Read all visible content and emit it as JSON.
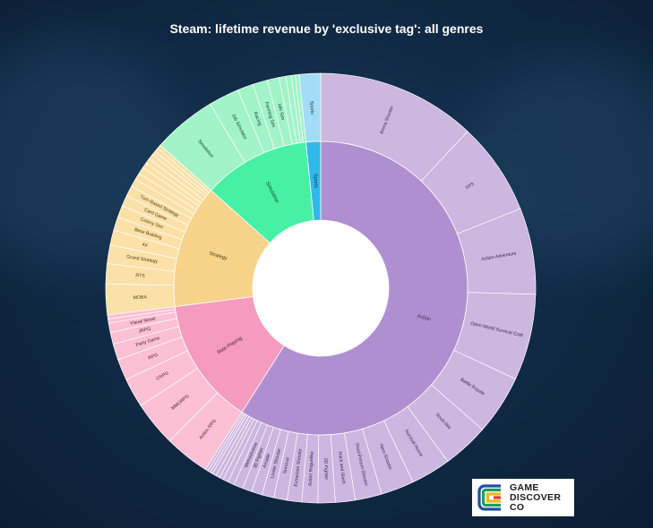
{
  "title": "Steam: lifetime revenue by 'exclusive tag': all genres",
  "logo": {
    "line1": "GAME",
    "line2": "DISCOVER",
    "line3": "CO",
    "colors": [
      "#1e4fa0",
      "#1aa05a",
      "#f2b620",
      "#e03a2f"
    ]
  },
  "chart_data": {
    "type": "sunburst",
    "title": "Steam: lifetime revenue by 'exclusive tag': all genres",
    "unit": "share of total (approx.)",
    "genres": [
      {
        "name": "Action",
        "value": 59.0,
        "inner_color": "#b08fd0",
        "outer_color": "#cdb6df",
        "label_color": "#3a2a4a",
        "tags": [
          {
            "name": "Arena Shooter",
            "value": 12.0
          },
          {
            "name": "FPS",
            "value": 7.0
          },
          {
            "name": "Action-Adventure",
            "value": 6.5
          },
          {
            "name": "Open World Survival Craft",
            "value": 6.5
          },
          {
            "name": "Battle Royale",
            "value": 4.5
          },
          {
            "name": "Souls-like",
            "value": 3.5
          },
          {
            "name": "Survival Horror",
            "value": 3.0
          },
          {
            "name": "Hero Shooter",
            "value": 2.5
          },
          {
            "name": "Third-Person Shooter",
            "value": 2.0
          },
          {
            "name": "Hack and Slash",
            "value": 1.5
          },
          {
            "name": "2D Fighter",
            "value": 1.3
          },
          {
            "name": "Action Roguelike",
            "value": 1.2
          },
          {
            "name": "Extraction Shooter",
            "value": 1.1
          },
          {
            "name": "Survival",
            "value": 1.0
          },
          {
            "name": "Looter Shooter",
            "value": 0.9
          },
          {
            "name": "Arcade",
            "value": 0.8
          },
          {
            "name": "3D Fighter",
            "value": 0.7
          },
          {
            "name": "Metroidvania",
            "value": 0.7
          },
          {
            "name": "",
            "value": 0.5
          },
          {
            "name": "",
            "value": 0.4
          },
          {
            "name": "",
            "value": 0.3
          },
          {
            "name": "",
            "value": 0.3
          },
          {
            "name": "",
            "value": 0.3
          },
          {
            "name": "",
            "value": 0.2
          },
          {
            "name": "",
            "value": 0.2
          },
          {
            "name": "",
            "value": 0.2
          }
        ]
      },
      {
        "name": "Role-Playing",
        "value": 14.0,
        "inner_color": "#f59bbf",
        "outer_color": "#fbc0d4",
        "label_color": "#4a2233",
        "tags": [
          {
            "name": "Action RPG",
            "value": 3.4
          },
          {
            "name": "MMORPG",
            "value": 3.4
          },
          {
            "name": "CRPG",
            "value": 2.2
          },
          {
            "name": "RPG",
            "value": 1.6
          },
          {
            "name": "Party Game",
            "value": 1.2
          },
          {
            "name": "JRPG",
            "value": 0.9
          },
          {
            "name": "Visual Novel",
            "value": 0.7
          },
          {
            "name": "",
            "value": 0.3
          },
          {
            "name": "",
            "value": 0.3
          }
        ]
      },
      {
        "name": "Strategy",
        "value": 13.6,
        "inner_color": "#f7d48a",
        "outer_color": "#fbe1a8",
        "label_color": "#4a3a12",
        "tags": [
          {
            "name": "MOBA",
            "value": 2.3
          },
          {
            "name": "RTS",
            "value": 1.5
          },
          {
            "name": "Grand Strategy",
            "value": 1.4
          },
          {
            "name": "4X",
            "value": 1.1
          },
          {
            "name": "Base Building",
            "value": 1.0
          },
          {
            "name": "Colony Sim",
            "value": 0.9
          },
          {
            "name": "Card Game",
            "value": 0.8
          },
          {
            "name": "Turn-Based Strategy",
            "value": 0.8
          },
          {
            "name": "",
            "value": 0.6
          },
          {
            "name": "",
            "value": 0.5
          },
          {
            "name": "",
            "value": 0.5
          },
          {
            "name": "",
            "value": 0.4
          },
          {
            "name": "",
            "value": 0.4
          },
          {
            "name": "",
            "value": 0.4
          },
          {
            "name": "",
            "value": 0.3
          },
          {
            "name": "",
            "value": 0.3
          },
          {
            "name": "",
            "value": 0.3
          }
        ]
      },
      {
        "name": "Simulation",
        "value": 11.8,
        "inner_color": "#48f0a5",
        "outer_color": "#a2f3c8",
        "label_color": "#14402a",
        "tags": [
          {
            "name": "Simulation",
            "value": 4.8
          },
          {
            "name": "Job Simulator",
            "value": 2.3
          },
          {
            "name": "Racing",
            "value": 1.2
          },
          {
            "name": "Farming Sim",
            "value": 1.1
          },
          {
            "name": "Idle Sim",
            "value": 0.9
          },
          {
            "name": "",
            "value": 0.5
          },
          {
            "name": "",
            "value": 0.4
          },
          {
            "name": "",
            "value": 0.3
          },
          {
            "name": "",
            "value": 0.3
          }
        ]
      },
      {
        "name": "Sports",
        "value": 1.6,
        "inner_color": "#2fb8ea",
        "outer_color": "#a3dcf5",
        "label_color": "#10344a",
        "tags": [
          {
            "name": "Sports",
            "value": 1.6
          }
        ]
      }
    ]
  }
}
